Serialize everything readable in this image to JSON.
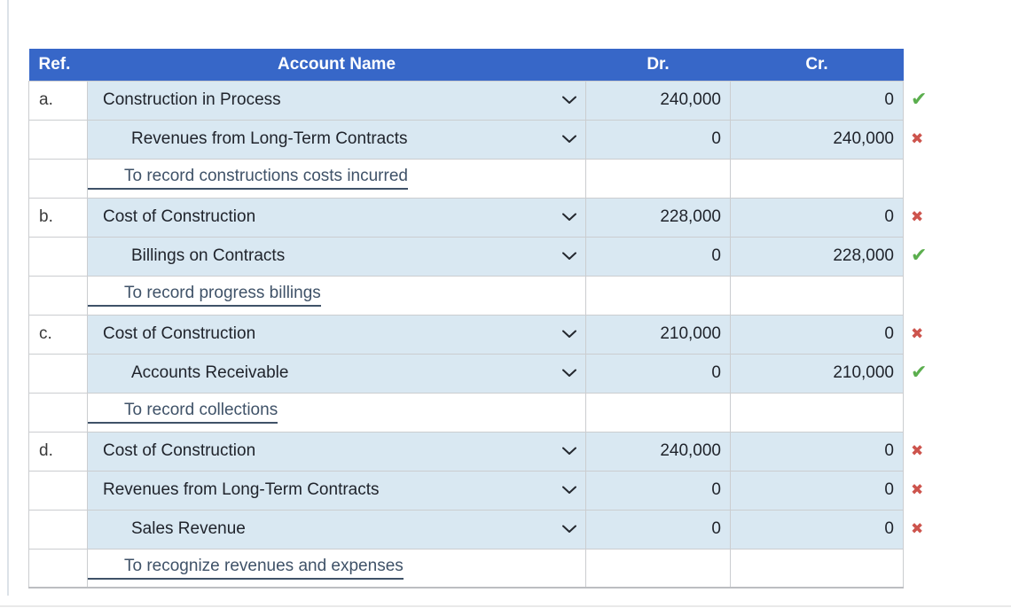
{
  "colors": {
    "header_bg": "#3767c8",
    "header_text": "#ffffff",
    "cell_bg": "#d9e8f2",
    "memo_text": "#3f5268",
    "correct_green": "#5bae4e",
    "incorrect_red": "#cd544d",
    "border_gray": "#cbcdd0"
  },
  "icons": {
    "correct": "✔",
    "incorrect": "✖",
    "dropdown": "chevron-down"
  },
  "table": {
    "headers": {
      "ref": "Ref.",
      "account": "Account Name",
      "dr": "Dr.",
      "cr": "Cr."
    },
    "rows": [
      {
        "type": "account",
        "ref": "a.",
        "account": "Construction in Process",
        "indent": 1,
        "dr": "240,000",
        "cr": "0",
        "status": "correct"
      },
      {
        "type": "account",
        "ref": "",
        "account": "Revenues from Long-Term Contracts",
        "indent": 2,
        "dr": "0",
        "cr": "240,000",
        "status": "incorrect"
      },
      {
        "type": "memo",
        "ref": "",
        "account": "To record constructions costs incurred",
        "indent": 0,
        "dr": "",
        "cr": "",
        "status": ""
      },
      {
        "type": "account",
        "ref": "b.",
        "account": "Cost of Construction",
        "indent": 1,
        "dr": "228,000",
        "cr": "0",
        "status": "incorrect"
      },
      {
        "type": "account",
        "ref": "",
        "account": "Billings on Contracts",
        "indent": 2,
        "dr": "0",
        "cr": "228,000",
        "status": "correct"
      },
      {
        "type": "memo",
        "ref": "",
        "account": "To record progress billings",
        "indent": 0,
        "dr": "",
        "cr": "",
        "status": ""
      },
      {
        "type": "account",
        "ref": "c.",
        "account": "Cost of Construction",
        "indent": 1,
        "dr": "210,000",
        "cr": "0",
        "status": "incorrect"
      },
      {
        "type": "account",
        "ref": "",
        "account": "Accounts Receivable",
        "indent": 2,
        "dr": "0",
        "cr": "210,000",
        "status": "correct"
      },
      {
        "type": "memo",
        "ref": "",
        "account": "To record collections",
        "indent": 0,
        "dr": "",
        "cr": "",
        "status": ""
      },
      {
        "type": "account",
        "ref": "d.",
        "account": "Cost of Construction",
        "indent": 1,
        "dr": "240,000",
        "cr": "0",
        "status": "incorrect"
      },
      {
        "type": "account",
        "ref": "",
        "account": "Revenues from Long-Term Contracts",
        "indent": 1,
        "dr": "0",
        "cr": "0",
        "status": "incorrect"
      },
      {
        "type": "account",
        "ref": "",
        "account": "Sales Revenue",
        "indent": 2,
        "dr": "0",
        "cr": "0",
        "status": "incorrect"
      },
      {
        "type": "memo",
        "ref": "",
        "account": "To recognize revenues and expenses",
        "indent": 0,
        "dr": "",
        "cr": "",
        "status": ""
      }
    ]
  }
}
